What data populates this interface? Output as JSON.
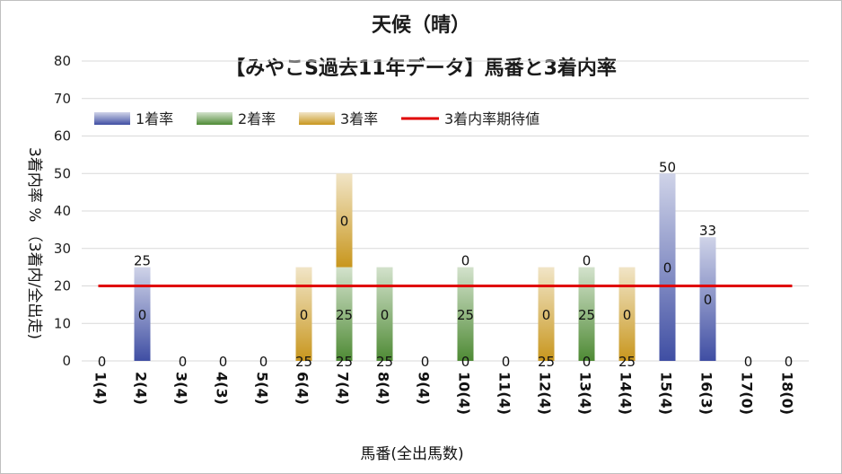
{
  "chart_data": {
    "type": "bar",
    "stacked": true,
    "title": "天候（晴）",
    "subtitle": "【みやこS過去11年データ】馬番と3着内率",
    "xlabel": "馬番(全出馬数)",
    "ylabel": "3着内率 % （3着内/全出走)",
    "ylim": [
      0,
      80
    ],
    "yticks": [
      0,
      10,
      20,
      30,
      40,
      50,
      60,
      70,
      80
    ],
    "grid": true,
    "legend_position": "top-left",
    "categories": [
      "1(4)",
      "2(4)",
      "3(4)",
      "4(3)",
      "5(4)",
      "6(4)",
      "7(4)",
      "8(4)",
      "9(4)",
      "10(4)",
      "11(4)",
      "12(4)",
      "13(4)",
      "14(4)",
      "15(4)",
      "16(3)",
      "17(0)",
      "18(0)"
    ],
    "series": [
      {
        "name": "1着率",
        "color": "#3f4ea3",
        "values": [
          0,
          25,
          0,
          0,
          0,
          0,
          0,
          0,
          0,
          0,
          0,
          0,
          0,
          0,
          50,
          33,
          0,
          0
        ]
      },
      {
        "name": "2着率",
        "color": "#4e8a34",
        "values": [
          0,
          0,
          0,
          0,
          0,
          0,
          25,
          25,
          0,
          25,
          0,
          0,
          25,
          0,
          0,
          0,
          0,
          0
        ]
      },
      {
        "name": "3着率",
        "color": "#c8961d",
        "values": [
          0,
          0,
          0,
          0,
          0,
          25,
          25,
          0,
          0,
          0,
          0,
          25,
          0,
          25,
          0,
          0,
          0,
          0
        ]
      }
    ],
    "reference_line": {
      "name": "3着内率期待値",
      "color": "#e00000",
      "value": 20
    },
    "data_labels": [
      {
        "category": "1(4)",
        "values": [
          "0"
        ]
      },
      {
        "category": "2(4)",
        "values": [
          "0",
          "25"
        ]
      },
      {
        "category": "3(4)",
        "values": [
          "0"
        ]
      },
      {
        "category": "4(3)",
        "values": [
          "0"
        ]
      },
      {
        "category": "5(4)",
        "values": [
          "0"
        ]
      },
      {
        "category": "6(4)",
        "values": [
          "25",
          "0"
        ]
      },
      {
        "category": "7(4)",
        "values": [
          "25",
          "25",
          "0"
        ]
      },
      {
        "category": "8(4)",
        "values": [
          "25",
          "0"
        ]
      },
      {
        "category": "9(4)",
        "values": [
          "0"
        ]
      },
      {
        "category": "10(4)",
        "values": [
          "0",
          "25",
          "0"
        ]
      },
      {
        "category": "11(4)",
        "values": [
          "0"
        ]
      },
      {
        "category": "12(4)",
        "values": [
          "25",
          "0"
        ]
      },
      {
        "category": "13(4)",
        "values": [
          "0",
          "25",
          "0"
        ]
      },
      {
        "category": "14(4)",
        "values": [
          "25",
          "0"
        ]
      },
      {
        "category": "15(4)",
        "values": [
          "0",
          "50"
        ]
      },
      {
        "category": "16(3)",
        "values": [
          "0",
          "33"
        ]
      },
      {
        "category": "17(0)",
        "values": [
          "0"
        ]
      },
      {
        "category": "18(0)",
        "values": [
          "0"
        ]
      }
    ]
  }
}
